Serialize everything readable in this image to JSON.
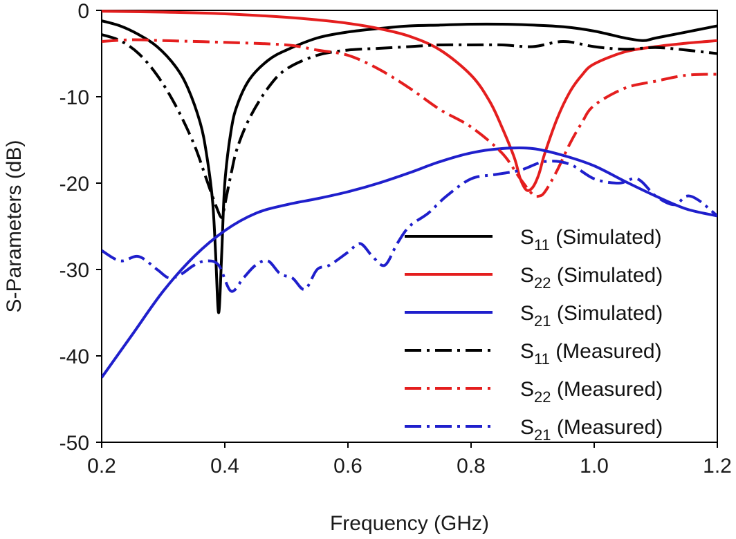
{
  "chart_data": {
    "type": "line",
    "title": "",
    "xlabel": "Frequency (GHz)",
    "ylabel": "S-Parameters (dB)",
    "xlim": [
      0.2,
      1.2
    ],
    "ylim": [
      -50,
      0
    ],
    "xticks": [
      0.2,
      0.4,
      0.6,
      0.8,
      1.0,
      1.2
    ],
    "xtick_labels": [
      "0.2",
      "0.4",
      "0.6",
      "0.8",
      "1.0",
      "1.2"
    ],
    "yticks": [
      0,
      -10,
      -20,
      -30,
      -40,
      -50
    ],
    "ytick_labels": [
      "0",
      "-10",
      "-20",
      "-30",
      "-40",
      "-50"
    ],
    "grid": false,
    "legend_position": "bottom-right",
    "series": [
      {
        "name": "S11 (Simulated)",
        "legend_main": "S",
        "legend_sub": "11",
        "legend_rest": " (Simulated)",
        "color": "#000000",
        "dash": "solid",
        "x": [
          0.2,
          0.23,
          0.26,
          0.29,
          0.32,
          0.34,
          0.36,
          0.37,
          0.38,
          0.385,
          0.39,
          0.395,
          0.4,
          0.41,
          0.42,
          0.44,
          0.47,
          0.5,
          0.55,
          0.6,
          0.65,
          0.7,
          0.75,
          0.8,
          0.85,
          0.9,
          0.95,
          1.0,
          1.05,
          1.08,
          1.1,
          1.15,
          1.2
        ],
        "y": [
          -1.2,
          -1.8,
          -2.8,
          -4.2,
          -6.5,
          -9.0,
          -13.0,
          -16.5,
          -22.0,
          -28.0,
          -35.0,
          -28.0,
          -20.0,
          -14.0,
          -11.0,
          -8.0,
          -5.8,
          -4.6,
          -3.2,
          -2.5,
          -2.1,
          -1.8,
          -1.7,
          -1.6,
          -1.6,
          -1.7,
          -1.9,
          -2.4,
          -3.2,
          -3.5,
          -3.2,
          -2.5,
          -1.8
        ]
      },
      {
        "name": "S22 (Simulated)",
        "legend_main": "S",
        "legend_sub": "22",
        "legend_rest": " (Simulated)",
        "color": "#e41e1e",
        "dash": "solid",
        "x": [
          0.2,
          0.3,
          0.4,
          0.5,
          0.55,
          0.6,
          0.65,
          0.7,
          0.75,
          0.8,
          0.83,
          0.85,
          0.87,
          0.88,
          0.89,
          0.9,
          0.91,
          0.92,
          0.94,
          0.96,
          0.98,
          1.0,
          1.05,
          1.1,
          1.15,
          1.2
        ],
        "y": [
          -0.1,
          -0.2,
          -0.4,
          -0.8,
          -1.1,
          -1.5,
          -2.1,
          -3.0,
          -4.6,
          -7.5,
          -10.5,
          -13.5,
          -17.0,
          -19.5,
          -20.8,
          -20.5,
          -19.0,
          -16.5,
          -12.5,
          -9.5,
          -7.5,
          -6.2,
          -4.8,
          -4.2,
          -3.8,
          -3.5
        ]
      },
      {
        "name": "S21 (Simulated)",
        "legend_main": "S",
        "legend_sub": "21",
        "legend_rest": " (Simulated)",
        "color": "#1f1fcc",
        "dash": "solid",
        "x": [
          0.2,
          0.25,
          0.3,
          0.35,
          0.4,
          0.45,
          0.5,
          0.55,
          0.6,
          0.65,
          0.7,
          0.75,
          0.8,
          0.85,
          0.9,
          0.95,
          1.0,
          1.05,
          1.1,
          1.15,
          1.2
        ],
        "y": [
          -42.5,
          -37.5,
          -32.5,
          -28.5,
          -25.5,
          -23.5,
          -22.5,
          -21.8,
          -21.0,
          -20.0,
          -18.8,
          -17.5,
          -16.5,
          -16.0,
          -16.0,
          -16.8,
          -18.0,
          -19.8,
          -21.5,
          -23.0,
          -23.8
        ]
      },
      {
        "name": "S11 (Measured)",
        "legend_main": "S",
        "legend_sub": "11",
        "legend_rest": " (Measured)",
        "color": "#000000",
        "dash": "dashdot",
        "x": [
          0.2,
          0.23,
          0.26,
          0.29,
          0.32,
          0.35,
          0.37,
          0.385,
          0.395,
          0.4,
          0.41,
          0.42,
          0.44,
          0.47,
          0.5,
          0.55,
          0.6,
          0.65,
          0.7,
          0.75,
          0.8,
          0.85,
          0.9,
          0.95,
          1.0,
          1.05,
          1.1,
          1.15,
          1.2
        ],
        "y": [
          -2.8,
          -3.5,
          -5.0,
          -7.5,
          -11.0,
          -15.5,
          -19.5,
          -22.5,
          -24.0,
          -22.5,
          -19.0,
          -16.0,
          -12.5,
          -9.0,
          -6.8,
          -5.2,
          -4.6,
          -4.4,
          -4.2,
          -4.0,
          -4.0,
          -4.0,
          -4.2,
          -3.6,
          -4.2,
          -4.5,
          -4.3,
          -4.6,
          -5.0
        ]
      },
      {
        "name": "S22 (Measured)",
        "legend_main": "S",
        "legend_sub": "22",
        "legend_rest": " (Measured)",
        "color": "#e41e1e",
        "dash": "dashdot",
        "x": [
          0.2,
          0.25,
          0.3,
          0.4,
          0.5,
          0.55,
          0.6,
          0.65,
          0.7,
          0.75,
          0.8,
          0.85,
          0.88,
          0.9,
          0.91,
          0.92,
          0.94,
          0.96,
          0.98,
          1.0,
          1.05,
          1.1,
          1.15,
          1.2
        ],
        "y": [
          -3.6,
          -3.4,
          -3.5,
          -3.7,
          -4.0,
          -4.6,
          -5.2,
          -6.8,
          -9.0,
          -11.5,
          -13.5,
          -16.5,
          -19.5,
          -21.3,
          -21.5,
          -21.0,
          -18.5,
          -15.5,
          -13.0,
          -11.0,
          -9.0,
          -8.2,
          -7.5,
          -7.4
        ]
      },
      {
        "name": "S21 (Measured)",
        "legend_main": "S",
        "legend_sub": "21",
        "legend_rest": " (Measured)",
        "color": "#1f1fcc",
        "dash": "dashdot",
        "x": [
          0.2,
          0.23,
          0.26,
          0.29,
          0.31,
          0.33,
          0.35,
          0.37,
          0.39,
          0.41,
          0.43,
          0.45,
          0.47,
          0.49,
          0.51,
          0.53,
          0.55,
          0.57,
          0.6,
          0.62,
          0.64,
          0.66,
          0.68,
          0.7,
          0.73,
          0.76,
          0.8,
          0.84,
          0.88,
          0.92,
          0.96,
          1.0,
          1.04,
          1.07,
          1.1,
          1.13,
          1.15,
          1.17,
          1.2
        ],
        "y": [
          -27.8,
          -29.0,
          -28.5,
          -30.0,
          -31.0,
          -30.5,
          -29.5,
          -29.0,
          -29.5,
          -32.5,
          -31.0,
          -29.5,
          -29.0,
          -30.5,
          -31.0,
          -32.3,
          -30.0,
          -29.5,
          -28.0,
          -27.0,
          -28.5,
          -29.5,
          -27.0,
          -25.0,
          -23.5,
          -21.5,
          -19.5,
          -19.0,
          -18.5,
          -17.5,
          -17.8,
          -19.5,
          -20.0,
          -19.5,
          -21.5,
          -22.5,
          -21.5,
          -22.0,
          -23.8
        ]
      }
    ]
  }
}
